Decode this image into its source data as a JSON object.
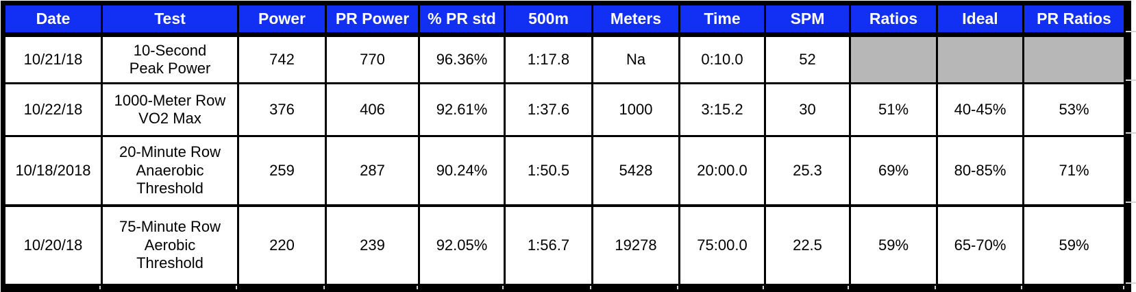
{
  "app_context": "spreadsheet-table",
  "colors": {
    "header_bg": "#1230F3",
    "header_text": "#FFFFFF",
    "shaded_cell": "#B7B7B7",
    "table_border": "#000000",
    "outside_gridline": "#D6D6D6",
    "cell_bg": "#FFFFFF"
  },
  "table": {
    "columns": [
      {
        "key": "date",
        "label": "Date"
      },
      {
        "key": "test",
        "label": "Test"
      },
      {
        "key": "power",
        "label": "Power"
      },
      {
        "key": "pr_power",
        "label": "PR Power"
      },
      {
        "key": "pct_pr_std",
        "label": "% PR std"
      },
      {
        "key": "m500",
        "label": "500m"
      },
      {
        "key": "meters",
        "label": "Meters"
      },
      {
        "key": "time",
        "label": "Time"
      },
      {
        "key": "spm",
        "label": "SPM"
      },
      {
        "key": "ratios",
        "label": "Ratios"
      },
      {
        "key": "ideal",
        "label": "Ideal"
      },
      {
        "key": "pr_ratios",
        "label": "PR Ratios"
      }
    ],
    "rows": [
      {
        "date": "10/21/18",
        "test": "10-Second\nPeak Power",
        "power": "742",
        "pr_power": "770",
        "pct_pr_std": "96.36%",
        "m500": "1:17.8",
        "meters": "Na",
        "time": "0:10.0",
        "spm": "52",
        "ratios": "",
        "ideal": "",
        "pr_ratios": "",
        "shaded_cells": [
          "ratios",
          "ideal",
          "pr_ratios"
        ]
      },
      {
        "date": "10/22/18",
        "test": "1000-Meter Row\nVO2 Max",
        "power": "376",
        "pr_power": "406",
        "pct_pr_std": "92.61%",
        "m500": "1:37.6",
        "meters": "1000",
        "time": "3:15.2",
        "spm": "30",
        "ratios": "51%",
        "ideal": "40-45%",
        "pr_ratios": "53%",
        "shaded_cells": []
      },
      {
        "date": "10/18/2018",
        "test": "20-Minute Row\nAnaerobic\nThreshold",
        "power": "259",
        "pr_power": "287",
        "pct_pr_std": "90.24%",
        "m500": "1:50.5",
        "meters": "5428",
        "time": "20:00.0",
        "spm": "25.3",
        "ratios": "69%",
        "ideal": "80-85%",
        "pr_ratios": "71%",
        "shaded_cells": []
      },
      {
        "date": "10/20/18",
        "test": "75-Minute Row\nAerobic\nThreshold",
        "power": "220",
        "pr_power": "239",
        "pct_pr_std": "92.05%",
        "m500": "1:56.7",
        "meters": "19278",
        "time": "75:00.0",
        "spm": "22.5",
        "ratios": "59%",
        "ideal": "65-70%",
        "pr_ratios": "59%",
        "shaded_cells": []
      }
    ]
  }
}
